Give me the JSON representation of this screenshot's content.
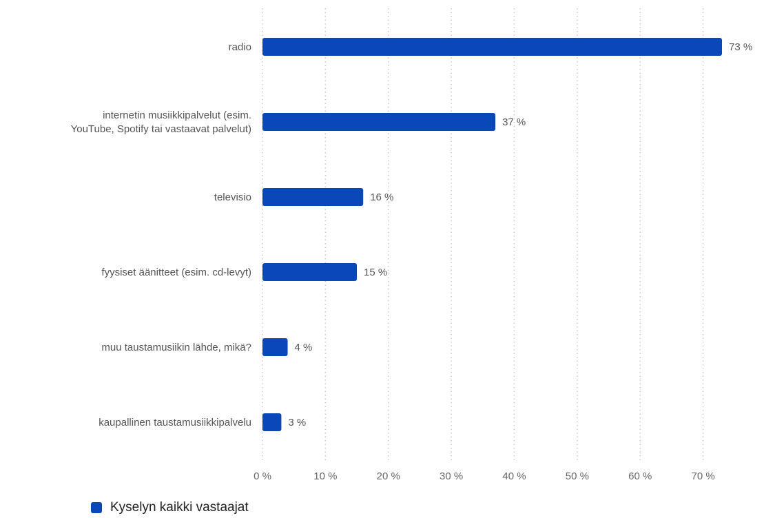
{
  "chart_data": {
    "type": "bar",
    "orientation": "horizontal",
    "categories": [
      [
        "radio"
      ],
      [
        "internetin musiikkipalvelut (esim.",
        "YouTube, Spotify tai vastaavat palvelut)"
      ],
      [
        "televisio"
      ],
      [
        "fyysiset äänitteet (esim. cd-levyt)"
      ],
      [
        "muu taustamusiikin lähde, mikä?"
      ],
      [
        "kaupallinen taustamusiikkipalvelu"
      ]
    ],
    "series": [
      {
        "name": "Kyselyn kaikki vastaajat",
        "color": "#0a47b8",
        "values": [
          73,
          37,
          16,
          15,
          4,
          3
        ],
        "value_labels": [
          "73 %",
          "37 %",
          "16 %",
          "15 %",
          "4 %",
          "3 %"
        ]
      }
    ],
    "xlim": [
      0,
      73
    ],
    "x_ticks": [
      0,
      10,
      20,
      30,
      40,
      50,
      60,
      70
    ],
    "x_tick_labels": [
      "0 %",
      "10 %",
      "20 %",
      "30 %",
      "40 %",
      "50 %",
      "60 %",
      "70 %"
    ],
    "grid": "vertical dotted",
    "legend_position": "bottom-left"
  },
  "legend": {
    "label": "Kyselyn kaikki vastaajat",
    "color": "#0a47b8"
  }
}
